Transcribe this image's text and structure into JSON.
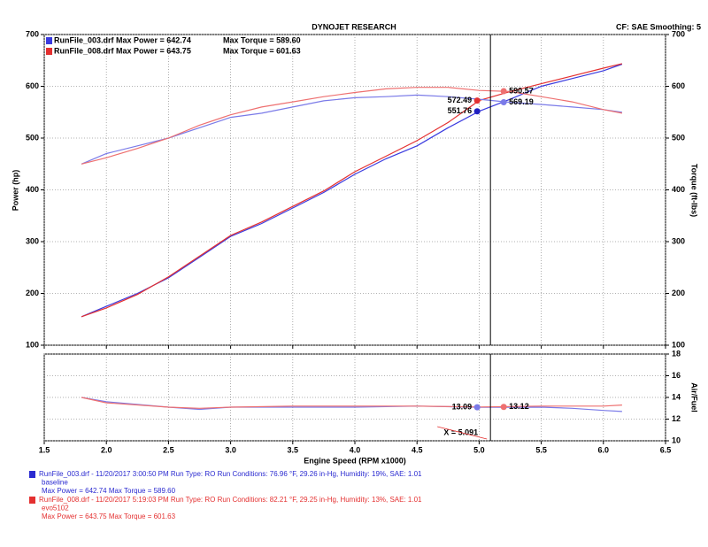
{
  "chart_data": [
    {
      "type": "line",
      "title": "DYNOJET RESEARCH",
      "note": "CF: SAE  Smoothing: 5",
      "ylabel": "Power (hp)",
      "y2label": "Torque (ft-lbs)",
      "xlim": [
        1.5,
        6.5
      ],
      "xticks": [
        1.5,
        2,
        2.5,
        3,
        3.5,
        4,
        4.5,
        5,
        5.5,
        6,
        6.5
      ],
      "ylim": [
        100,
        700
      ],
      "yticks": [
        100,
        200,
        300,
        400,
        500,
        600,
        700
      ],
      "y2lim": [
        100,
        700
      ],
      "y2ticks": [
        100,
        200,
        300,
        400,
        500,
        600,
        700
      ],
      "grid": true,
      "legend": [
        {
          "text": "RunFile_003.drf Max Power = 642.74",
          "torque": "Max Torque = 589.60",
          "color": "#3a3adf"
        },
        {
          "text": "RunFile_008.drf Max Power = 643.75",
          "torque": "Max Torque = 601.63",
          "color": "#e43030"
        }
      ],
      "x": [
        1.8,
        2.0,
        2.25,
        2.5,
        2.75,
        3.0,
        3.25,
        3.5,
        3.75,
        4.0,
        4.25,
        4.5,
        4.75,
        5.0,
        5.25,
        5.5,
        5.75,
        6.0,
        6.15
      ],
      "series": [
        {
          "color": "#3a3adf",
          "axis": "y",
          "values": [
            155,
            175,
            200,
            230,
            270,
            310,
            335,
            365,
            395,
            430,
            460,
            485,
            520,
            551.76,
            575,
            600,
            615,
            630,
            642.74
          ]
        },
        {
          "color": "#e43030",
          "axis": "y",
          "values": [
            155,
            172,
            198,
            232,
            272,
            312,
            338,
            368,
            398,
            435,
            465,
            495,
            530,
            572.49,
            590,
            605,
            620,
            635,
            643.75
          ]
        },
        {
          "color": "#7a7ae8",
          "axis": "y2",
          "values": [
            450,
            470,
            485,
            500,
            520,
            540,
            548,
            560,
            572,
            578,
            580,
            583,
            580,
            575,
            569,
            565,
            560,
            555,
            550
          ]
        },
        {
          "color": "#ee7070",
          "axis": "y2",
          "values": [
            450,
            462,
            480,
            500,
            525,
            545,
            560,
            570,
            580,
            588,
            595,
            598,
            598,
            592,
            590,
            580,
            570,
            555,
            548
          ]
        }
      ],
      "cursor": {
        "x": 5.091
      },
      "readouts": [
        {
          "value": 572.49,
          "axis": "y",
          "side": "left",
          "color": "#e43030"
        },
        {
          "value": 551.76,
          "axis": "y",
          "side": "left",
          "color": "#2020c0"
        },
        {
          "value": 590.57,
          "axis": "y2",
          "side": "right",
          "color": "#ee7070"
        },
        {
          "value": 569.19,
          "axis": "y2",
          "side": "right",
          "color": "#7a7ae8"
        }
      ]
    },
    {
      "type": "line",
      "y2label": "Air/Fuel",
      "xlabel": "Engine Speed (RPM x1000)",
      "xlim": [
        1.5,
        6.5
      ],
      "xticks": [
        1.5,
        {
          "value": 2,
          "label": "2.0"
        },
        2.5,
        {
          "value": 3,
          "label": "3.0"
        },
        3.5,
        {
          "value": 4,
          "label": "4.0"
        },
        4.5,
        {
          "value": 5,
          "label": "5.0"
        },
        5.5,
        {
          "value": 6,
          "label": "6.0"
        },
        6.5
      ],
      "y2lim": [
        10,
        18
      ],
      "y2ticks": [
        10,
        12,
        14,
        16,
        18
      ],
      "grid": true,
      "x": [
        1.8,
        2.0,
        2.5,
        2.75,
        3.0,
        3.5,
        4.0,
        4.5,
        5.0,
        5.5,
        5.75,
        6.0,
        6.15
      ],
      "series": [
        {
          "color": "#7a7ae8",
          "axis": "y2",
          "values": [
            14.0,
            13.6,
            13.1,
            12.9,
            13.1,
            13.1,
            13.1,
            13.2,
            13.09,
            13.1,
            13.0,
            12.8,
            12.7
          ]
        },
        {
          "color": "#ee7070",
          "axis": "y2",
          "values": [
            14.0,
            13.5,
            13.1,
            13.0,
            13.1,
            13.2,
            13.2,
            13.2,
            13.12,
            13.2,
            13.2,
            13.2,
            13.3
          ]
        }
      ],
      "cursor": {
        "x": 5.091,
        "label": "X = 5.091"
      },
      "readouts": [
        {
          "value": 13.09,
          "axis": "y2",
          "side": "left",
          "color": "#7a7ae8"
        },
        {
          "value": 13.12,
          "axis": "y2",
          "side": "right",
          "color": "#ee7070"
        }
      ]
    }
  ],
  "runs": [
    {
      "color": "#2a2ad0",
      "lines": [
        "RunFile_003.drf - 11/20/2017 3:00:50 PM  Run Type: RO  Run Conditions: 76.96 °F, 29.26 in-Hg,  Humidity:  19%, SAE: 1.01",
        "baseline",
        "Max Power = 642.74  Max Torque = 589.60"
      ]
    },
    {
      "color": "#e43030",
      "lines": [
        "RunFile_008.drf - 11/20/2017 5:19:03 PM  Run Type: RO  Run Conditions: 82.21 °F, 29.25 in-Hg,  Humidity:  13%, SAE: 1.01",
        "evo5102",
        "Max Power = 643.75  Max Torque = 601.63"
      ]
    }
  ]
}
